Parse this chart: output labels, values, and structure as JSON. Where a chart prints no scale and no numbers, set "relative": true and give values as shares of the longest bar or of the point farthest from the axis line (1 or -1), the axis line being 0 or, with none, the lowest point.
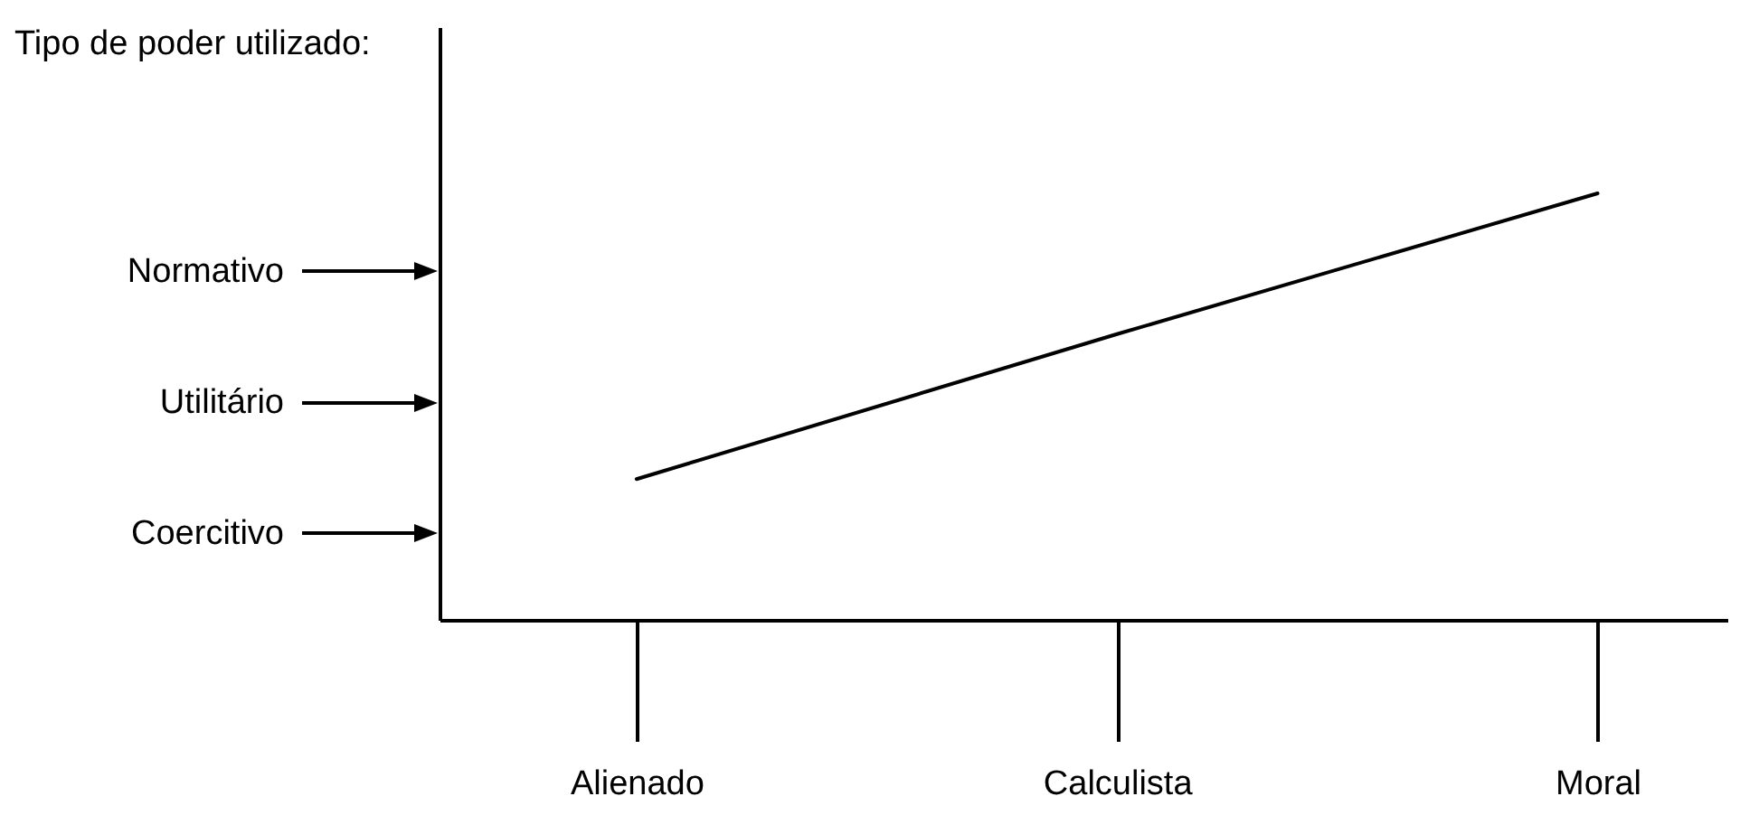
{
  "chart_data": {
    "type": "line",
    "relative": true,
    "categories": [
      "Alienado",
      "Calculista",
      "Moral"
    ],
    "series": [
      {
        "color": "#000000",
        "values": [
          0.33,
          0.67,
          1
        ]
      }
    ],
    "annotations": [
      "Tipo de poder utilizado:",
      "Coercitivo",
      "Utilitário",
      "Normativo"
    ],
    "grid": false
  }
}
